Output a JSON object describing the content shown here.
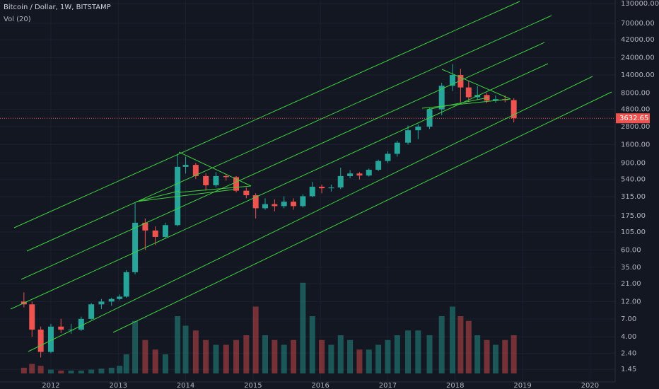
{
  "chart_data": {
    "type": "candlestick",
    "title": "Bitcoin / Dollar, 1W, BITSTAMP",
    "volume_label": "Vol (20)",
    "x": [
      2011.6,
      2011.72,
      2011.85,
      2012.0,
      2012.15,
      2012.3,
      2012.45,
      2012.6,
      2012.75,
      2012.9,
      2013.02,
      2013.12,
      2013.25,
      2013.4,
      2013.55,
      2013.7,
      2013.88,
      2014.0,
      2014.15,
      2014.3,
      2014.45,
      2014.6,
      2014.75,
      2014.9,
      2015.04,
      2015.18,
      2015.32,
      2015.46,
      2015.6,
      2015.74,
      2015.88,
      2016.02,
      2016.16,
      2016.3,
      2016.44,
      2016.58,
      2016.72,
      2016.86,
      2017.0,
      2017.14,
      2017.3,
      2017.45,
      2017.62,
      2017.8,
      2017.96,
      2018.08,
      2018.2,
      2018.33,
      2018.47,
      2018.6,
      2018.74,
      2018.87
    ],
    "open": [
      12,
      11,
      5,
      2.5,
      5.5,
      5,
      5,
      7,
      11,
      12,
      13,
      14,
      30,
      140,
      110,
      90,
      130,
      800,
      850,
      600,
      450,
      600,
      580,
      380,
      330,
      220,
      250,
      235,
      270,
      235,
      320,
      430,
      410,
      420,
      600,
      650,
      610,
      730,
      960,
      1200,
      1700,
      2500,
      2800,
      4800,
      10000,
      14000,
      9500,
      7000,
      7500,
      6300,
      6600,
      6400
    ],
    "high": [
      16,
      12,
      5.5,
      6,
      7,
      6,
      7.5,
      11.5,
      13,
      13.5,
      15,
      32,
      260,
      160,
      125,
      140,
      1200,
      1100,
      900,
      650,
      680,
      640,
      600,
      420,
      350,
      300,
      290,
      320,
      300,
      340,
      500,
      460,
      460,
      780,
      720,
      680,
      760,
      1000,
      1300,
      1800,
      2900,
      3000,
      5000,
      11000,
      19700,
      17000,
      11500,
      9900,
      8000,
      7400,
      7400,
      6800
    ],
    "low": [
      10,
      4,
      2.1,
      2.4,
      4.5,
      4.4,
      4.8,
      6.8,
      9.5,
      10.5,
      12.5,
      13.5,
      28,
      60,
      70,
      85,
      125,
      650,
      550,
      380,
      420,
      520,
      360,
      300,
      160,
      210,
      200,
      220,
      210,
      225,
      310,
      350,
      370,
      400,
      560,
      540,
      590,
      700,
      900,
      1100,
      1600,
      1900,
      2600,
      4000,
      8500,
      6000,
      6200,
      6400,
      5800,
      5900,
      6000,
      3200
    ],
    "close": [
      11,
      5,
      2.5,
      5.5,
      5,
      5,
      7,
      11,
      12,
      13,
      14,
      30,
      140,
      110,
      90,
      130,
      800,
      850,
      600,
      450,
      600,
      580,
      380,
      330,
      220,
      250,
      235,
      270,
      235,
      320,
      430,
      410,
      420,
      600,
      650,
      610,
      730,
      960,
      1200,
      1700,
      2500,
      2800,
      4800,
      10000,
      14000,
      9500,
      7000,
      7500,
      6300,
      6600,
      6400,
      3632.65
    ],
    "volume": [
      6,
      10,
      8,
      4,
      3,
      3,
      3,
      4,
      5,
      6,
      8,
      20,
      55,
      35,
      25,
      20,
      60,
      50,
      45,
      35,
      30,
      30,
      35,
      40,
      70,
      40,
      35,
      30,
      35,
      95,
      60,
      35,
      30,
      40,
      35,
      25,
      25,
      30,
      35,
      40,
      45,
      45,
      40,
      60,
      70,
      60,
      55,
      40,
      35,
      30,
      35,
      40
    ],
    "vlim": [
      0,
      100
    ],
    "up_color": "#26a69a",
    "down_color": "#ef5350",
    "log_y": true,
    "grid": true,
    "last_price": 3632.65,
    "xlim": [
      2011.245,
      2020.374
    ],
    "xticks": [
      2012,
      2013,
      2014,
      2015,
      2016,
      2017,
      2018,
      2019,
      2020
    ],
    "ylim": [
      0.98,
      145000
    ],
    "yticks": [
      {
        "value": 130000,
        "label": "130000.00"
      },
      {
        "value": 70000,
        "label": "70000.00"
      },
      {
        "value": 42000,
        "label": "42000.00"
      },
      {
        "value": 24000,
        "label": "24000.00"
      },
      {
        "value": 14000,
        "label": "14000.00"
      },
      {
        "value": 8000,
        "label": "8000.00"
      },
      {
        "value": 4800,
        "label": "4800.00"
      },
      {
        "value": 2800,
        "label": "2800.00"
      },
      {
        "value": 1600,
        "label": "1600.00"
      },
      {
        "value": 900,
        "label": "900.00"
      },
      {
        "value": 540,
        "label": "540.00"
      },
      {
        "value": 315,
        "label": "315.00"
      },
      {
        "value": 175,
        "label": "175.00"
      },
      {
        "value": 105,
        "label": "105.00"
      },
      {
        "value": 60,
        "label": "60.00"
      },
      {
        "value": 35,
        "label": "35.00"
      },
      {
        "value": 21,
        "label": "21.00"
      },
      {
        "value": 12,
        "label": "12.00"
      },
      {
        "value": 7,
        "label": "7.00"
      },
      {
        "value": 4,
        "label": "4.00"
      },
      {
        "value": 2.4,
        "label": "2.40"
      },
      {
        "value": 1.45,
        "label": "1.45"
      }
    ]
  }
}
